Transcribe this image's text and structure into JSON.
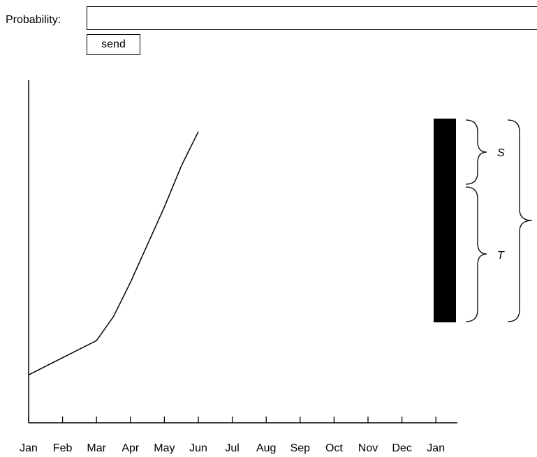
{
  "form": {
    "probability_label": "Probability:",
    "probability_value": "",
    "send_label": "send"
  },
  "chart_data": {
    "type": "line",
    "categories": [
      "Jan",
      "Feb",
      "Mar",
      "Apr",
      "May",
      "Jun",
      "Jul",
      "Aug",
      "Sep",
      "Oct",
      "Nov",
      "Dec",
      "Jan"
    ],
    "series": [
      {
        "x": [
          0,
          1,
          2,
          2.5,
          3,
          4,
          4.5,
          5
        ],
        "values": [
          0.14,
          0.19,
          0.24,
          0.31,
          0.41,
          0.63,
          0.75,
          0.85
        ]
      }
    ],
    "ylim": [
      0,
      1
    ],
    "xlabel": "",
    "ylabel": "",
    "grid": false,
    "bar": {
      "type": "stacked-vertical",
      "color": "#000000"
    },
    "braces": [
      {
        "label": "S",
        "italic": true
      },
      {
        "label": "T",
        "italic": true
      }
    ]
  }
}
